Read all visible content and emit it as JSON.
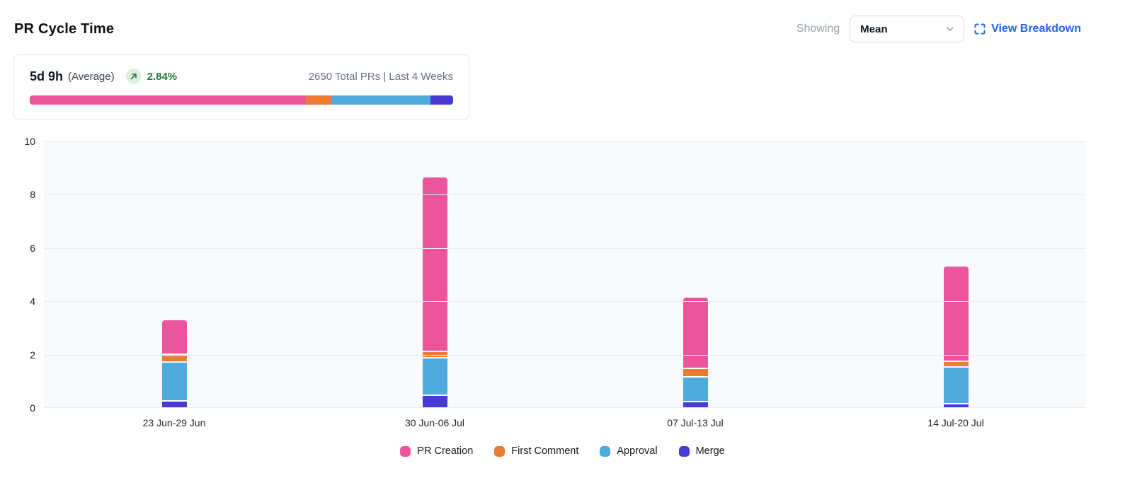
{
  "header": {
    "title": "PR Cycle Time",
    "showing_label": "Showing",
    "metric_select": {
      "value": "Mean"
    },
    "view_breakdown_label": "View Breakdown",
    "link_color": "#2563eb"
  },
  "summary": {
    "value": "5d 9h",
    "value_suffix": "(Average)",
    "trend": {
      "direction": "up",
      "percent": "2.84%",
      "color": "#217a33",
      "badge_bg": "#ddf0de"
    },
    "meta": "2650 Total PRs | Last 4 Weeks",
    "distribution": [
      {
        "name": "PR Creation",
        "color": "#ec549c",
        "percent": 65.3
      },
      {
        "name": "First Comment",
        "color": "#ed7b34",
        "percent": 5.9
      },
      {
        "name": "Approval",
        "color": "#4fabdc",
        "percent": 23.5
      },
      {
        "name": "Merge",
        "color": "#473bd4",
        "percent": 5.3
      }
    ]
  },
  "chart_data": {
    "type": "bar",
    "stacked": true,
    "title": "PR Cycle Time",
    "xlabel": "",
    "ylabel": "",
    "categories": [
      "23 Jun-29 Jun",
      "30 Jun-06 Jul",
      "07 Jul-13 Jul",
      "14 Jul-20 Jul"
    ],
    "series_bottom_to_top": [
      {
        "name": "Merge",
        "color": "#473bd4",
        "values": [
          0.25,
          0.45,
          0.2,
          0.12
        ]
      },
      {
        "name": "Approval",
        "color": "#4fabdc",
        "values": [
          1.45,
          1.4,
          0.95,
          1.38
        ]
      },
      {
        "name": "First Comment",
        "color": "#ed7b34",
        "values": [
          0.3,
          0.25,
          0.3,
          0.22
        ]
      },
      {
        "name": "PR Creation",
        "color": "#ec549c",
        "values": [
          1.3,
          6.55,
          2.7,
          3.58
        ]
      }
    ],
    "totals": [
      3.3,
      8.65,
      4.15,
      5.3
    ],
    "ylim": [
      0,
      10
    ],
    "yticks": [
      0,
      2,
      4,
      6,
      8,
      10
    ],
    "grid": true,
    "plot_bg": "#f9fafc",
    "gridline_color": "#e9ebf0",
    "legend_position": "bottom",
    "legend": [
      {
        "label": "PR Creation",
        "color": "#ec549c"
      },
      {
        "label": "First Comment",
        "color": "#ed7b34"
      },
      {
        "label": "Approval",
        "color": "#4fabdc"
      },
      {
        "label": "Merge",
        "color": "#473bd4"
      }
    ]
  }
}
